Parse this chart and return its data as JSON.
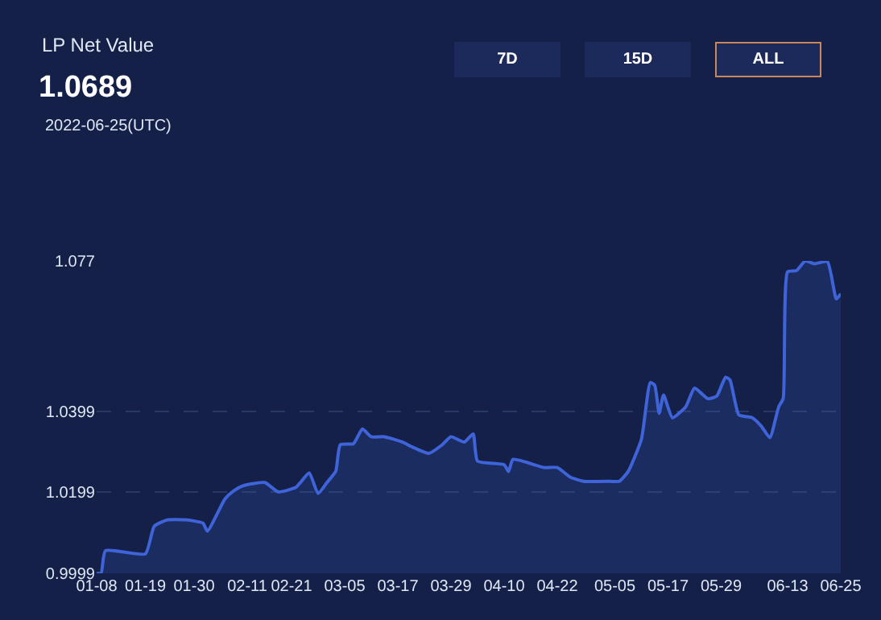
{
  "chart_data": {
    "type": "area",
    "title": "LP Net Value",
    "subtitle": "1.0689",
    "annotations": [
      "2022-06-25(UTC)",
      "7D",
      "15D",
      "ALL"
    ],
    "x": [
      "2022-01-08",
      "2022-01-09",
      "2022-01-10",
      "2022-01-19",
      "2022-01-21",
      "2022-01-24",
      "2022-01-28",
      "2022-02-01",
      "2022-02-02",
      "2022-02-06",
      "2022-02-08",
      "2022-02-10",
      "2022-02-15",
      "2022-02-18",
      "2022-02-22",
      "2022-02-23",
      "2022-02-25",
      "2022-02-27",
      "2022-03-01",
      "2022-03-03",
      "2022-03-04",
      "2022-03-07",
      "2022-03-09",
      "2022-03-11",
      "2022-03-14",
      "2022-03-18",
      "2022-03-20",
      "2022-03-24",
      "2022-03-27",
      "2022-03-29",
      "2022-04-01",
      "2022-04-03",
      "2022-04-04",
      "2022-04-10",
      "2022-04-11",
      "2022-04-12",
      "2022-04-19",
      "2022-04-22",
      "2022-04-25",
      "2022-04-28",
      "2022-05-04",
      "2022-05-06",
      "2022-05-08",
      "2022-05-11",
      "2022-05-13",
      "2022-05-14",
      "2022-05-15",
      "2022-05-16",
      "2022-05-18",
      "2022-05-21",
      "2022-05-23",
      "2022-05-26",
      "2022-05-28",
      "2022-05-30",
      "2022-05-31",
      "2022-06-02",
      "2022-06-05",
      "2022-06-07",
      "2022-06-09",
      "2022-06-11",
      "2022-06-12",
      "2022-06-13",
      "2022-06-15",
      "2022-06-17",
      "2022-06-19",
      "2022-06-22",
      "2022-06-24",
      "2022-06-25"
    ],
    "series": [
      {
        "color": "#3f63d8",
        "values": [
          0.9999,
          0.9999,
          1.0055,
          1.0047,
          1.0115,
          1.0131,
          1.0131,
          1.0123,
          1.0103,
          1.0183,
          1.0203,
          1.0215,
          1.0223,
          1.02,
          1.0211,
          1.0223,
          1.0247,
          1.0196,
          1.0223,
          1.0251,
          1.0316,
          1.0319,
          1.0355,
          1.0336,
          1.0336,
          1.0323,
          1.0312,
          1.0295,
          1.0316,
          1.0336,
          1.0323,
          1.0343,
          1.0276,
          1.0267,
          1.025,
          1.028,
          1.026,
          1.026,
          1.0236,
          1.0226,
          1.0226,
          1.0226,
          1.025,
          1.033,
          1.047,
          1.0463,
          1.0394,
          1.0439,
          1.0383,
          1.041,
          1.0456,
          1.043,
          1.0436,
          1.0483,
          1.0476,
          1.039,
          1.0383,
          1.0363,
          1.0334,
          1.041,
          1.043,
          1.0743,
          1.0746,
          1.077,
          1.0763,
          1.0768,
          1.0676,
          1.0689
        ]
      }
    ],
    "xlim": [
      "2022-01-08",
      "2022-06-25"
    ],
    "xticks": [
      {
        "value": "2022-01-08",
        "label": "01-08"
      },
      {
        "value": "2022-01-19",
        "label": "01-19"
      },
      {
        "value": "2022-01-30",
        "label": "01-30"
      },
      {
        "value": "2022-02-11",
        "label": "02-11"
      },
      {
        "value": "2022-02-21",
        "label": "02-21"
      },
      {
        "value": "2022-03-05",
        "label": "03-05"
      },
      {
        "value": "2022-03-17",
        "label": "03-17"
      },
      {
        "value": "2022-03-29",
        "label": "03-29"
      },
      {
        "value": "2022-04-10",
        "label": "04-10"
      },
      {
        "value": "2022-04-22",
        "label": "04-22"
      },
      {
        "value": "2022-05-05",
        "label": "05-05"
      },
      {
        "value": "2022-05-17",
        "label": "05-17"
      },
      {
        "value": "2022-05-29",
        "label": "05-29"
      },
      {
        "value": "2022-06-13",
        "label": "06-13"
      },
      {
        "value": "2022-06-25",
        "label": "06-25"
      }
    ],
    "ylim": [
      0.9999,
      1.077
    ],
    "yticks": [
      0.9999,
      1.0199,
      1.0399,
      1.077
    ],
    "grid": "y"
  }
}
